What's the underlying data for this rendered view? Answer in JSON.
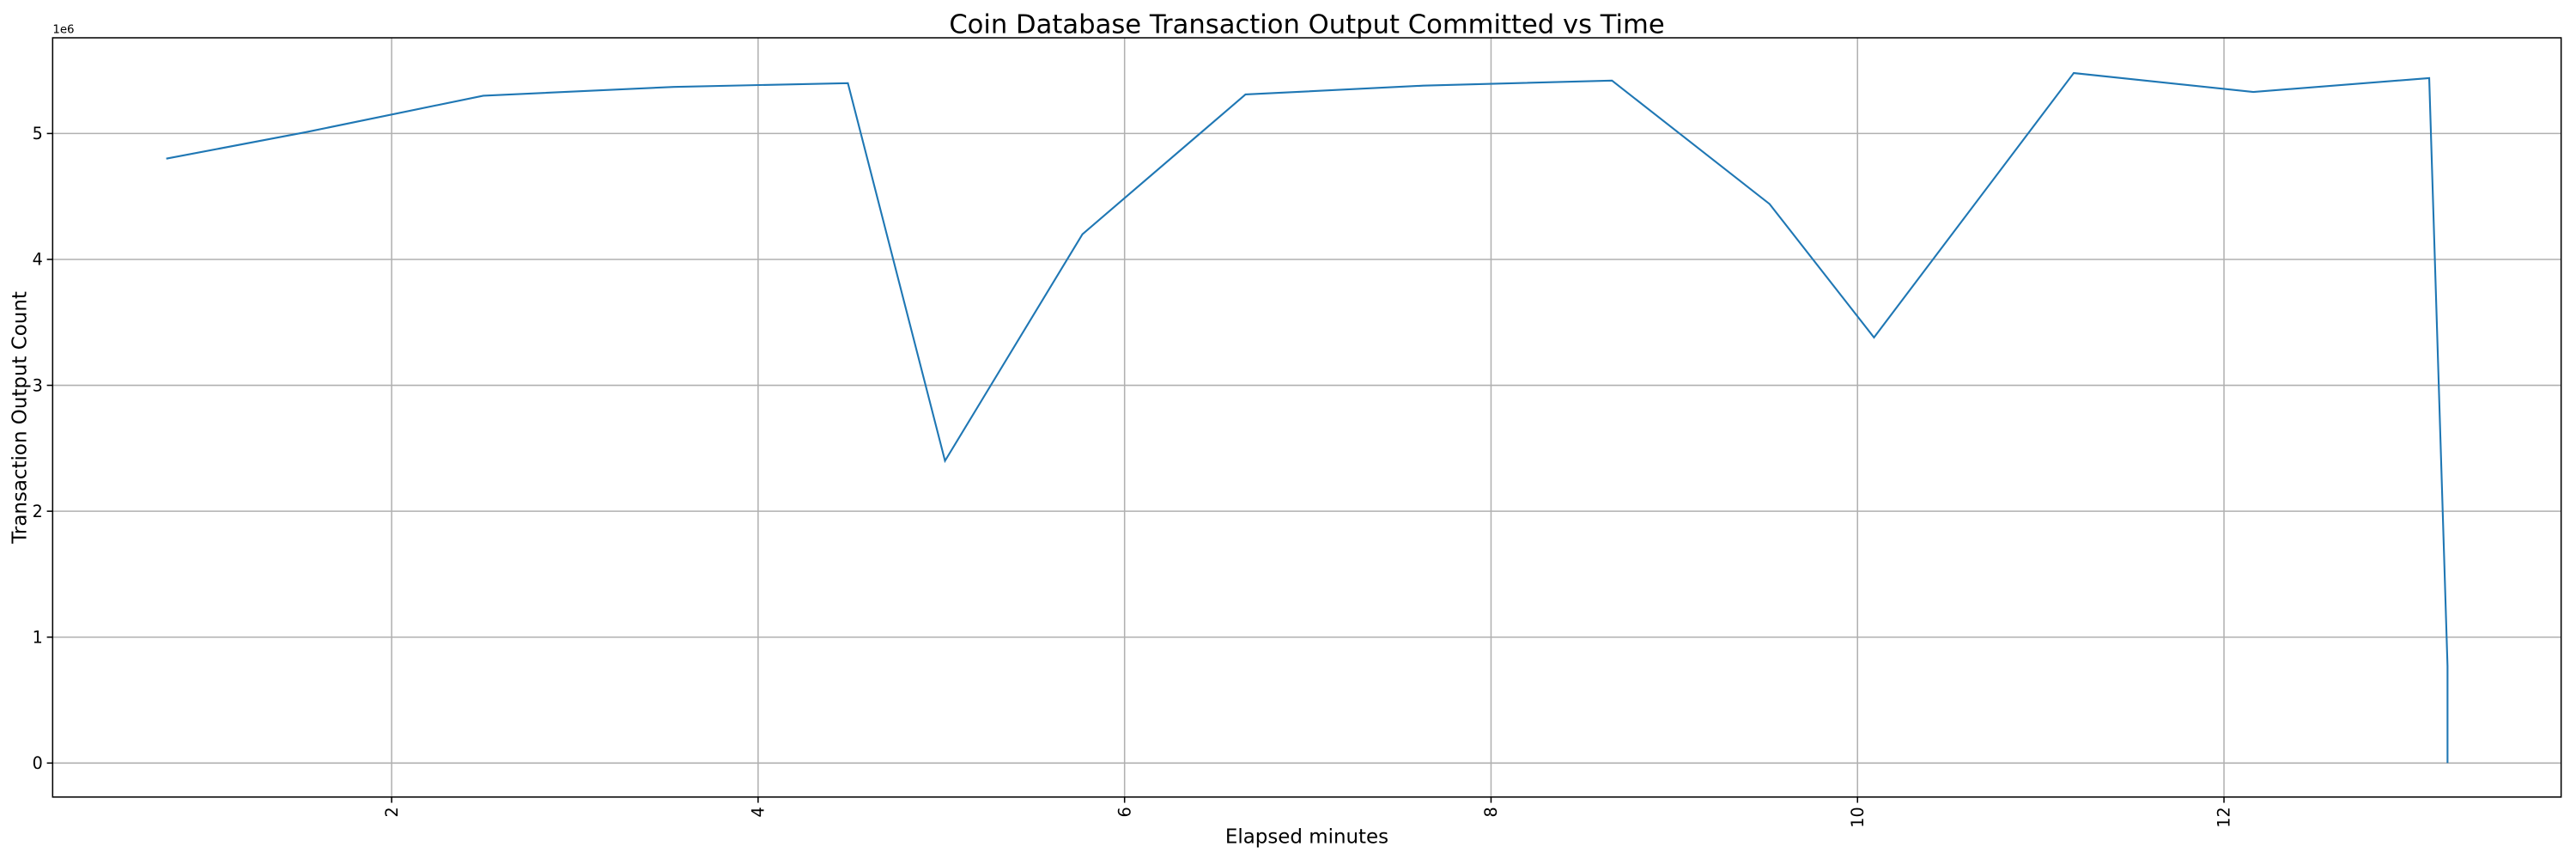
{
  "chart_data": {
    "type": "line",
    "title": "Coin Database Transaction Output Committed vs Time",
    "xlabel": "Elapsed minutes",
    "ylabel": "Transaction Output Count",
    "y_offset_label": "1e6",
    "xlim": [
      0.15,
      13.84
    ],
    "ylim": [
      -0.27,
      5.76
    ],
    "y_scale_factor": 1000000,
    "grid": true,
    "x_ticks": [
      2,
      4,
      6,
      8,
      10,
      12
    ],
    "x_tick_labels": [
      "2",
      "4",
      "6",
      "8",
      "10",
      "12"
    ],
    "x_tick_rotation": 90,
    "y_ticks": [
      0,
      1,
      2,
      3,
      4,
      5
    ],
    "y_tick_labels": [
      "0",
      "1",
      "2",
      "3",
      "4",
      "5"
    ],
    "series": [
      {
        "color": "#1f77b4",
        "x": [
          0.77,
          1.53,
          2.5,
          3.54,
          4.49,
          5.02,
          5.77,
          6.66,
          7.63,
          8.66,
          9.52,
          10.09,
          11.18,
          12.16,
          13.12,
          13.22,
          13.22
        ],
        "y": [
          4.8,
          5.01,
          5.3,
          5.37,
          5.4,
          2.4,
          4.2,
          5.31,
          5.38,
          5.42,
          4.44,
          3.38,
          5.48,
          5.33,
          5.44,
          0.77,
          0.0
        ]
      }
    ]
  }
}
